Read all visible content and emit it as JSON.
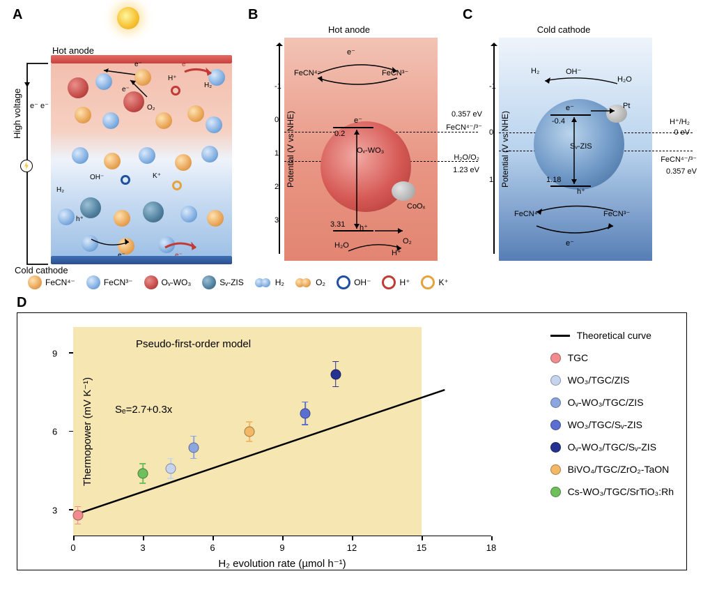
{
  "panelA": {
    "label": "A",
    "hot_label": "Hot anode",
    "cold_label": "Cold cathode",
    "high_voltage": "High voltage",
    "ee_label": "e⁻ e⁻",
    "labels": {
      "e1": "e⁻",
      "e2": "e⁻",
      "e3": "e⁻",
      "e4": "e⁻",
      "Hp": "H⁺",
      "H2": "H₂",
      "O2": "O₂",
      "OH": "OH⁻",
      "Kp": "K⁺",
      "h": "h⁺",
      "H2b": "H₂"
    },
    "colors": {
      "hot_bar": "#d1483f",
      "cold_bar": "#2f5aa0",
      "grad_top": "#f3bfae",
      "grad_bot": "#9fc1e6"
    }
  },
  "panelB": {
    "label": "B",
    "title": "Hot anode",
    "bg_top": "#f2c3b4",
    "bg_bot": "#e28572",
    "ylabel": "Potential (V vs NHE)",
    "ticks": [
      {
        "v": "-1",
        "y": 70
      },
      {
        "v": "0",
        "y": 118
      },
      {
        "v": "1",
        "y": 166
      },
      {
        "v": "2",
        "y": 214
      },
      {
        "v": "3",
        "y": 262
      }
    ],
    "dash1_y": 135,
    "dash2_y": 177,
    "annot": {
      "fecn_redox": "FeCN⁴⁻/³⁻",
      "fecn_e": "0.357 eV",
      "h2oo2": "H₂O/O₂",
      "o2_e": "1.23 eV",
      "cb": "0.2",
      "bg": "3.31",
      "e": "e⁻",
      "h": "h⁺",
      "coox": "CoOₓ",
      "h2o": "H₂O",
      "o2": "O₂",
      "hp": "H⁺",
      "fecn4": "FeCN⁴⁻",
      "fecn3": "FeCN³⁻",
      "mat": "Oᵥ-WO₃"
    }
  },
  "panelC": {
    "label": "C",
    "title": "Cold cathode",
    "ylabel": "Potential (V vs NHE)",
    "ticks": [
      {
        "v": "-1",
        "y": 70
      },
      {
        "v": "0",
        "y": 136
      },
      {
        "v": "1",
        "y": 204
      }
    ],
    "dash1_y": 136,
    "dash2_y": 162,
    "annot": {
      "h2": "H₂",
      "oh": "OH⁻",
      "h2o": "H₂O",
      "hh2": "H⁺/H₂",
      "hh2e": "0 eV",
      "fecn": "FeCN⁴⁻/³⁻",
      "fecne": "0.357 eV",
      "cb": "-0.4",
      "bg": "1.18",
      "pt": "Pt",
      "e": "e⁻",
      "h": "h⁺",
      "fecn4": "FeCN⁴⁻",
      "fecn3": "FeCN³⁻",
      "mat": "Sᵥ-ZIS"
    }
  },
  "species_legend": [
    {
      "name": "FeCN⁴⁻",
      "type": "orange"
    },
    {
      "name": "FeCN³⁻",
      "type": "blue"
    },
    {
      "name": "Oᵥ-WO₃",
      "type": "wo3"
    },
    {
      "name": "Sᵥ-ZIS",
      "type": "zis"
    },
    {
      "name": "H₂",
      "type": "h2"
    },
    {
      "name": "O₂",
      "type": "o2"
    },
    {
      "name": "OH⁻",
      "type": "ring-blue"
    },
    {
      "name": "H⁺",
      "type": "ring-red"
    },
    {
      "name": "K⁺",
      "type": "ring-or"
    }
  ],
  "panelD": {
    "label": "D",
    "title": "Pseudo-first-order model",
    "equation": "Sₑ=2.7+0.3x",
    "xlabel": "H₂ evolution rate (µmol h⁻¹)",
    "ylabel": "Thermopower  (mV K⁻¹)",
    "xlim": [
      0,
      18
    ],
    "ylim": [
      2,
      10
    ],
    "shade_xmax": 15,
    "xticks": [
      0,
      3,
      6,
      9,
      12,
      15,
      18
    ],
    "yticks": [
      3,
      6,
      9
    ],
    "line": {
      "x1": 0,
      "y1": 2.8,
      "x2": 16,
      "y2": 7.6,
      "color": "#000000",
      "width": 2.5
    },
    "points": [
      {
        "x": 0.2,
        "y": 2.8,
        "err": 0.35,
        "color": "#f08b8e",
        "key": "TGC"
      },
      {
        "x": 4.2,
        "y": 4.6,
        "err": 0.4,
        "color": "#c7d4ef",
        "key": "WO3/TGC/ZIS"
      },
      {
        "x": 5.2,
        "y": 5.4,
        "err": 0.45,
        "color": "#8ea6e0",
        "key": "Ov-WO3/TGC/ZIS"
      },
      {
        "x": 10.0,
        "y": 6.7,
        "err": 0.45,
        "color": "#5a6fcf",
        "key": "WO3/TGC/Sv-ZIS"
      },
      {
        "x": 11.3,
        "y": 8.2,
        "err": 0.5,
        "color": "#26328f",
        "key": "Ov-WO3/TGC/Sv-ZIS"
      },
      {
        "x": 7.6,
        "y": 6.0,
        "err": 0.4,
        "color": "#f2b866",
        "key": "BiVO4/TGC/ZrO2-TaON"
      },
      {
        "x": 3.0,
        "y": 4.4,
        "err": 0.4,
        "color": "#6fbf5d",
        "key": "Cs-WO3/TGC/SrTiO3:Rh"
      }
    ],
    "legend": [
      {
        "type": "line",
        "label": "Theoretical curve"
      },
      {
        "type": "dot",
        "color": "#f08b8e",
        "label": "TGC"
      },
      {
        "type": "dot",
        "color": "#c7d4ef",
        "label": "WO₃/TGC/ZIS"
      },
      {
        "type": "dot",
        "color": "#8ea6e0",
        "label": "Oᵥ-WO₃/TGC/ZIS"
      },
      {
        "type": "dot",
        "color": "#5a6fcf",
        "label": "WO₃/TGC/Sᵥ-ZIS"
      },
      {
        "type": "dot",
        "color": "#26328f",
        "label": "Oᵥ-WO₃/TGC/Sᵥ-ZIS"
      },
      {
        "type": "dot",
        "color": "#f2b866",
        "label": "BiVO₄/TGC/ZrO₂-TaON"
      },
      {
        "type": "dot",
        "color": "#6fbf5d",
        "label": "Cs-WO₃/TGC/SrTiO₃:Rh"
      }
    ]
  }
}
